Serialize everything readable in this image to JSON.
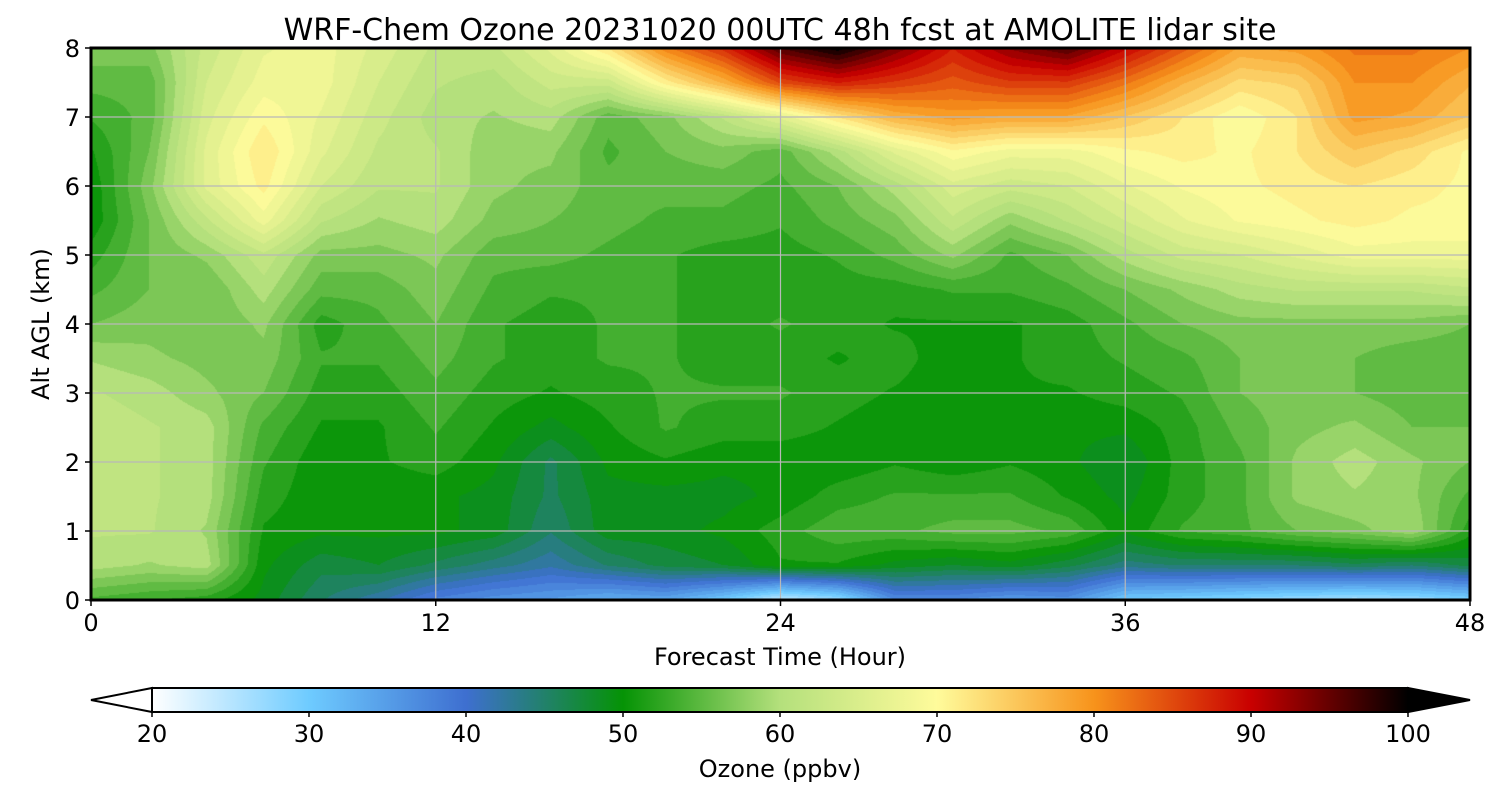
{
  "chart_data": {
    "type": "heatmap",
    "title": "WRF-Chem Ozone  20231020 00UTC 48h fcst at AMOLITE lidar site",
    "xlabel": "Forecast Time (Hour)",
    "ylabel": "Alt AGL (km)",
    "x_ticks": [
      "0",
      "12",
      "24",
      "36",
      "48"
    ],
    "y_ticks": [
      "0",
      "1",
      "2",
      "3",
      "4",
      "5",
      "6",
      "7",
      "8"
    ],
    "xlim": [
      0,
      48
    ],
    "ylim": [
      0,
      8
    ],
    "grid": true,
    "x": [
      0,
      2,
      4,
      6,
      8,
      10,
      12,
      14,
      16,
      18,
      20,
      22,
      24,
      26,
      28,
      30,
      32,
      34,
      36,
      38,
      40,
      42,
      44,
      46,
      48
    ],
    "y": [
      0,
      0.5,
      1,
      1.5,
      2,
      2.5,
      3,
      3.5,
      4,
      4.5,
      5,
      5.5,
      6,
      6.5,
      7,
      7.5,
      8
    ],
    "z": [
      [
        54,
        53,
        52,
        49,
        45,
        42,
        38,
        36,
        35,
        33,
        34,
        30,
        24,
        27,
        37,
        37,
        35,
        36,
        30,
        29,
        28,
        27,
        26,
        27,
        29
      ],
      [
        60,
        59,
        60,
        50,
        47,
        48,
        46,
        44,
        42,
        45,
        47,
        48,
        51,
        51,
        49,
        48,
        49,
        47,
        44,
        45,
        45,
        45,
        46,
        45,
        47
      ],
      [
        61,
        61,
        59,
        51,
        50,
        50,
        50,
        49,
        45,
        49,
        49,
        50,
        52,
        54,
        54,
        55,
        55,
        54,
        50,
        53,
        54,
        56,
        57,
        59,
        52
      ],
      [
        62,
        61,
        60,
        52,
        50,
        50,
        50,
        49,
        46,
        49,
        49,
        49,
        50,
        52,
        53,
        53,
        53,
        51,
        49,
        52,
        54,
        58,
        59,
        58,
        54
      ],
      [
        62,
        61,
        60,
        53,
        50,
        51,
        52,
        50,
        46,
        50,
        51,
        50,
        50,
        50,
        51,
        50,
        51,
        50,
        48,
        52,
        54,
        58,
        60,
        58,
        56
      ],
      [
        62,
        61,
        60,
        54,
        51,
        51,
        53,
        51,
        49,
        51,
        53,
        52,
        52,
        51,
        50,
        50,
        51,
        50,
        50,
        52,
        55,
        57,
        58,
        56,
        56
      ],
      [
        61,
        60,
        58,
        56,
        52,
        52,
        54,
        52,
        51,
        52,
        53,
        53,
        53,
        52,
        51,
        50,
        51,
        51,
        52,
        53,
        56,
        57,
        56,
        55,
        56
      ],
      [
        59,
        58,
        57,
        57,
        53,
        53,
        55,
        53,
        52,
        53,
        53,
        52,
        52,
        51,
        52,
        50,
        51,
        52,
        53,
        54,
        56,
        57,
        56,
        55,
        55
      ],
      [
        56,
        57,
        56,
        58,
        52,
        54,
        56,
        53,
        52,
        53,
        53,
        52,
        53,
        52,
        51,
        51,
        51,
        52,
        54,
        56,
        57,
        57,
        57,
        57,
        56
      ],
      [
        54,
        56,
        56,
        60,
        55,
        55,
        57,
        54,
        53,
        53,
        53,
        52,
        52,
        52,
        52,
        53,
        53,
        54,
        56,
        58,
        60,
        61,
        61,
        61,
        62
      ],
      [
        52,
        56,
        58,
        62,
        57,
        57,
        58,
        55,
        55,
        54,
        53,
        52,
        52,
        53,
        55,
        58,
        54,
        56,
        60,
        63,
        64,
        66,
        68,
        68,
        68
      ],
      [
        50,
        56,
        62,
        68,
        61,
        59,
        60,
        57,
        56,
        55,
        54,
        54,
        53,
        55,
        57,
        62,
        58,
        61,
        64,
        67,
        69,
        70,
        71,
        70,
        70
      ],
      [
        50,
        57,
        66,
        71,
        64,
        61,
        61,
        58,
        57,
        55,
        55,
        55,
        54,
        56,
        60,
        65,
        63,
        64,
        67,
        69,
        70,
        71,
        72,
        71,
        70
      ],
      [
        51,
        56,
        66,
        72,
        66,
        62,
        61,
        58,
        58,
        54,
        56,
        57,
        55,
        60,
        66,
        70,
        68,
        68,
        70,
        71,
        70,
        72,
        75,
        73,
        70
      ],
      [
        53,
        55,
        65,
        70,
        67,
        63,
        60,
        59,
        60,
        55,
        57,
        61,
        66,
        72,
        77,
        79,
        78,
        78,
        75,
        72,
        69,
        72,
        79,
        78,
        75
      ],
      [
        55,
        55,
        64,
        68,
        68,
        64,
        61,
        60,
        63,
        63,
        71,
        77,
        85,
        88,
        86,
        84,
        86,
        86,
        82,
        77,
        73,
        74,
        80,
        80,
        77
      ],
      [
        57,
        57,
        63,
        67,
        68,
        65,
        62,
        62,
        66,
        72,
        81,
        87,
        96,
        100,
        94,
        88,
        93,
        96,
        90,
        84,
        78,
        79,
        82,
        82,
        80
      ]
    ],
    "colorbar": {
      "label": "Ozone  (ppbv)",
      "ticks": [
        "20",
        "30",
        "40",
        "50",
        "60",
        "70",
        "80",
        "90",
        "100"
      ],
      "range": [
        20,
        100
      ],
      "extend": "both",
      "colors": [
        "#ffffff",
        "#6ecbff",
        "#3e6fd0",
        "#059305",
        "#b4e07c",
        "#fffb9b",
        "#f7931b",
        "#c90000",
        "#000000"
      ]
    }
  }
}
